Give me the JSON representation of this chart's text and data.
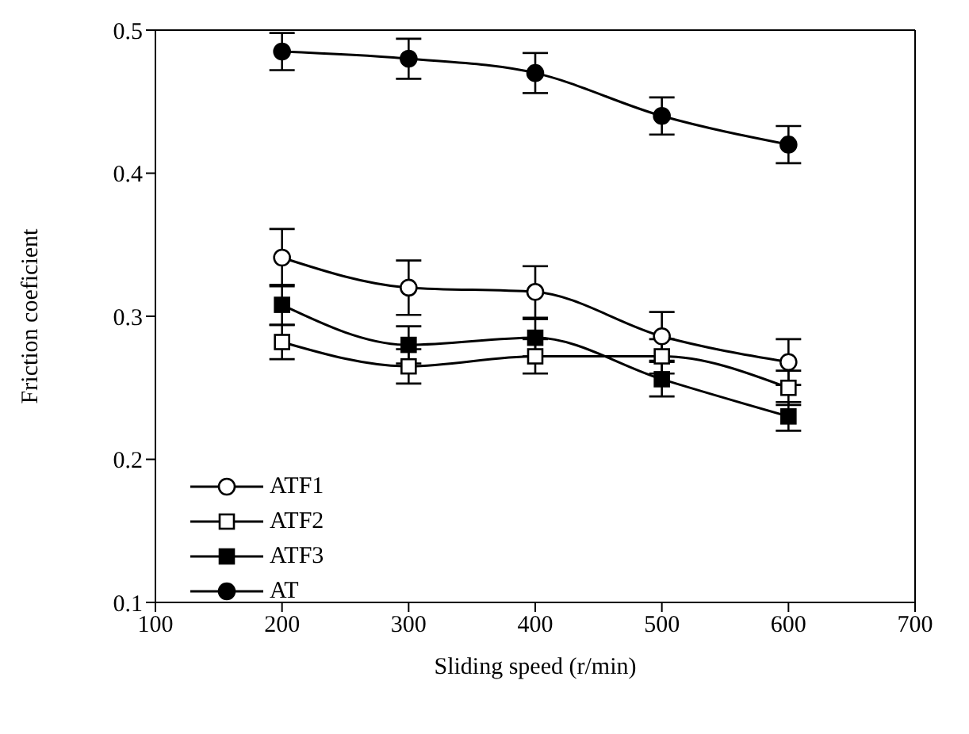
{
  "chart_data": {
    "type": "line",
    "xlabel": "Sliding speed  (r/min)",
    "ylabel": "Friction coeficient",
    "x": [
      200,
      300,
      400,
      500,
      600
    ],
    "xlim": [
      100,
      700
    ],
    "xticks": [
      100,
      200,
      300,
      400,
      500,
      600,
      700
    ],
    "ylim": [
      0.1,
      0.5
    ],
    "yticks": [
      0.1,
      0.2,
      0.3,
      0.4,
      0.5
    ],
    "grid": false,
    "legend": "bottom left",
    "line_style": "solid",
    "series": [
      {
        "name": "ATF1",
        "color": "#000000",
        "marker": "circle-open",
        "values": [
          0.341,
          0.32,
          0.317,
          0.286,
          0.268
        ],
        "errors": [
          0.02,
          0.019,
          0.018,
          0.017,
          0.016
        ]
      },
      {
        "name": "ATF2",
        "color": "#000000",
        "marker": "square-open",
        "values": [
          0.282,
          0.265,
          0.272,
          0.272,
          0.25
        ],
        "errors": [
          0.012,
          0.012,
          0.012,
          0.012,
          0.012
        ]
      },
      {
        "name": "ATF3",
        "color": "#000000",
        "marker": "square",
        "values": [
          0.308,
          0.28,
          0.285,
          0.256,
          0.23
        ],
        "errors": [
          0.014,
          0.013,
          0.013,
          0.012,
          0.01
        ]
      },
      {
        "name": "AT",
        "color": "#000000",
        "marker": "circle",
        "values": [
          0.485,
          0.48,
          0.47,
          0.44,
          0.42
        ],
        "errors": [
          0.013,
          0.014,
          0.014,
          0.013,
          0.013
        ]
      }
    ]
  }
}
